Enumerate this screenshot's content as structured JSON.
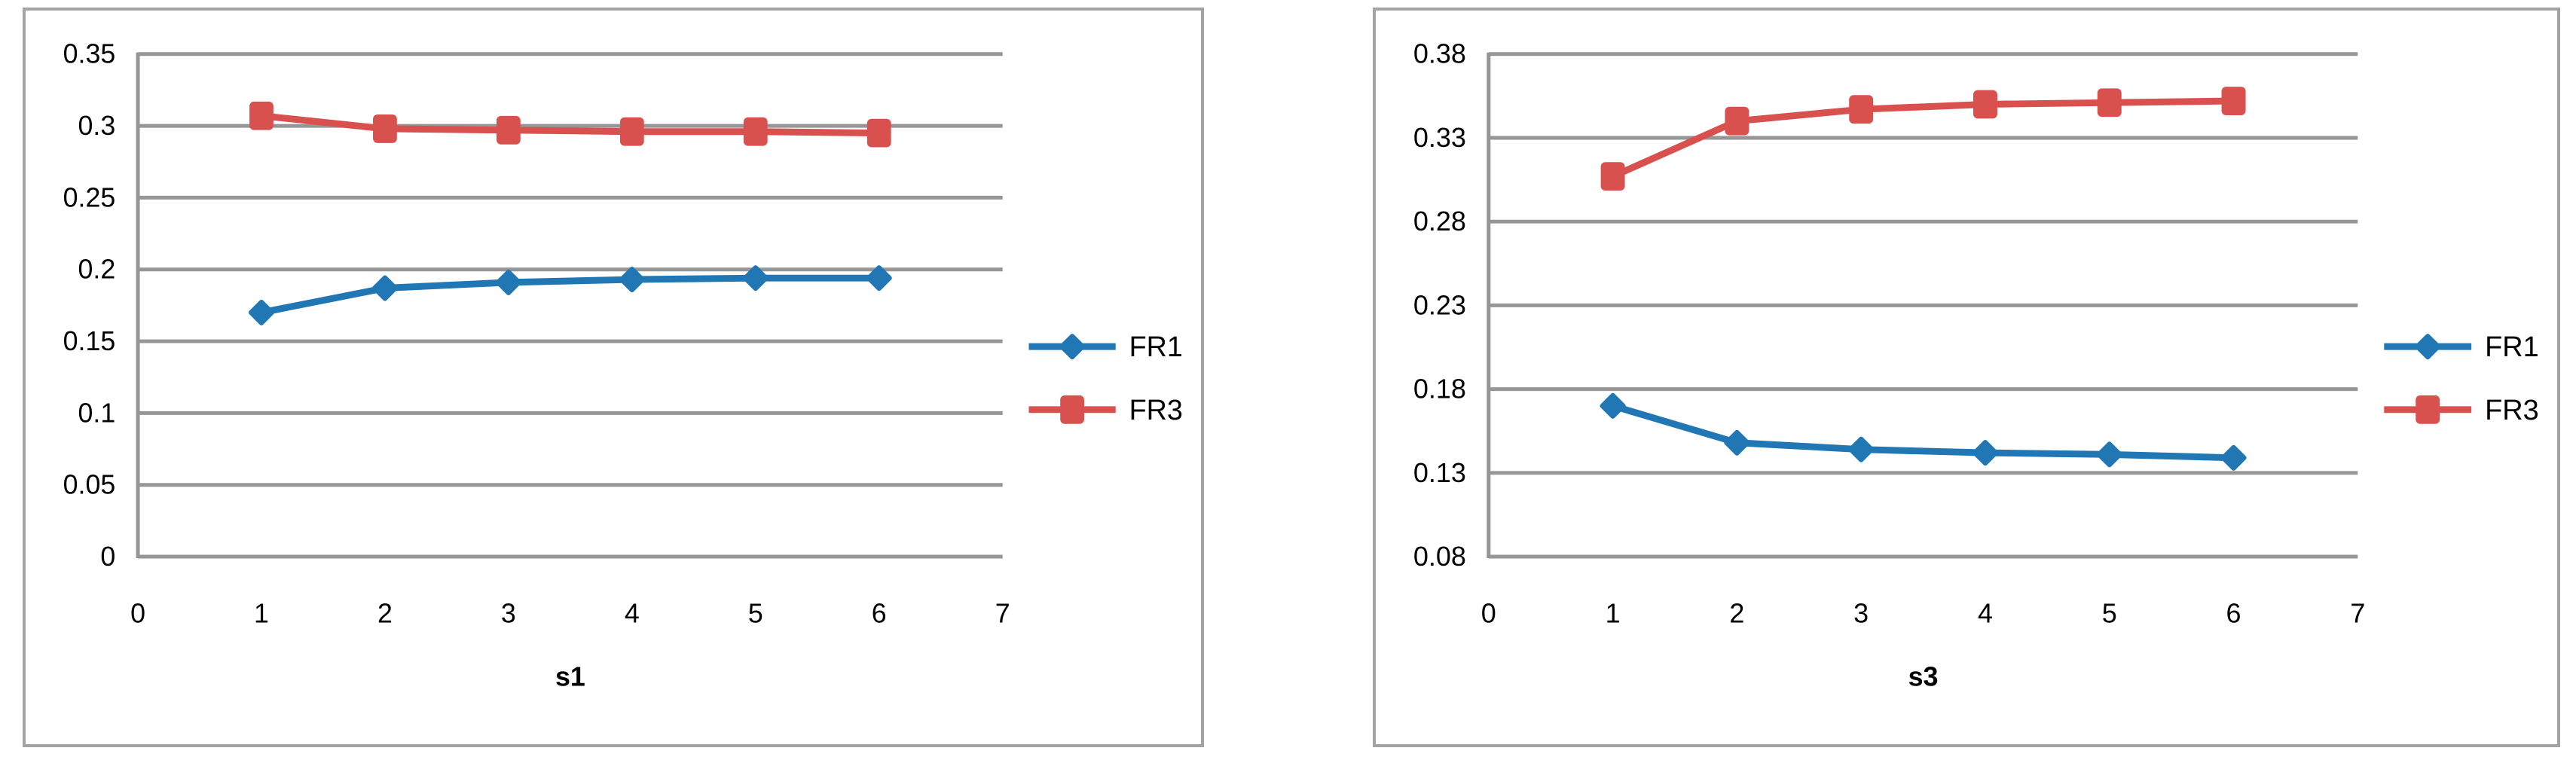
{
  "colors": {
    "fr1_blue": "#2077b4",
    "fr3_red": "#d9514e",
    "gridline_gray": "#969696",
    "frame_border_gray": "#a3a3a3",
    "text_black": "#000000"
  },
  "chart_data": [
    {
      "type": "line",
      "title": "",
      "xlabel": "s1",
      "ylabel": "",
      "x_range": [
        0,
        7
      ],
      "y_range": [
        0,
        0.35
      ],
      "x": [
        1,
        2,
        3,
        4,
        5,
        6
      ],
      "x_ticks": [
        "0",
        "1",
        "2",
        "3",
        "4",
        "5",
        "6",
        "7"
      ],
      "y_ticks": [
        "0.35",
        "0.3",
        "0.25",
        "0.2",
        "0.15",
        "0.1",
        "0.05",
        "0"
      ],
      "grid": true,
      "legend_position": "right-middle",
      "series": [
        {
          "name": "FR1",
          "marker": "diamond",
          "color": "#2077b4",
          "values": [
            0.17,
            0.187,
            0.191,
            0.193,
            0.194,
            0.194
          ]
        },
        {
          "name": "FR3",
          "marker": "square",
          "color": "#d9514e",
          "values": [
            0.307,
            0.298,
            0.297,
            0.296,
            0.296,
            0.295
          ]
        }
      ]
    },
    {
      "type": "line",
      "title": "",
      "xlabel": "s3",
      "ylabel": "",
      "x_range": [
        0,
        7
      ],
      "y_range": [
        0.08,
        0.38
      ],
      "x": [
        1,
        2,
        3,
        4,
        5,
        6
      ],
      "x_ticks": [
        "0",
        "1",
        "2",
        "3",
        "4",
        "5",
        "6",
        "7"
      ],
      "y_ticks": [
        "0.38",
        "0.33",
        "0.28",
        "0.23",
        "0.18",
        "0.13",
        "0.08"
      ],
      "grid": true,
      "legend_position": "right-middle",
      "series": [
        {
          "name": "FR1",
          "marker": "diamond",
          "color": "#2077b4",
          "values": [
            0.17,
            0.148,
            0.144,
            0.142,
            0.141,
            0.139
          ]
        },
        {
          "name": "FR3",
          "marker": "square",
          "color": "#d9514e",
          "values": [
            0.307,
            0.34,
            0.347,
            0.35,
            0.351,
            0.352
          ]
        }
      ]
    }
  ]
}
